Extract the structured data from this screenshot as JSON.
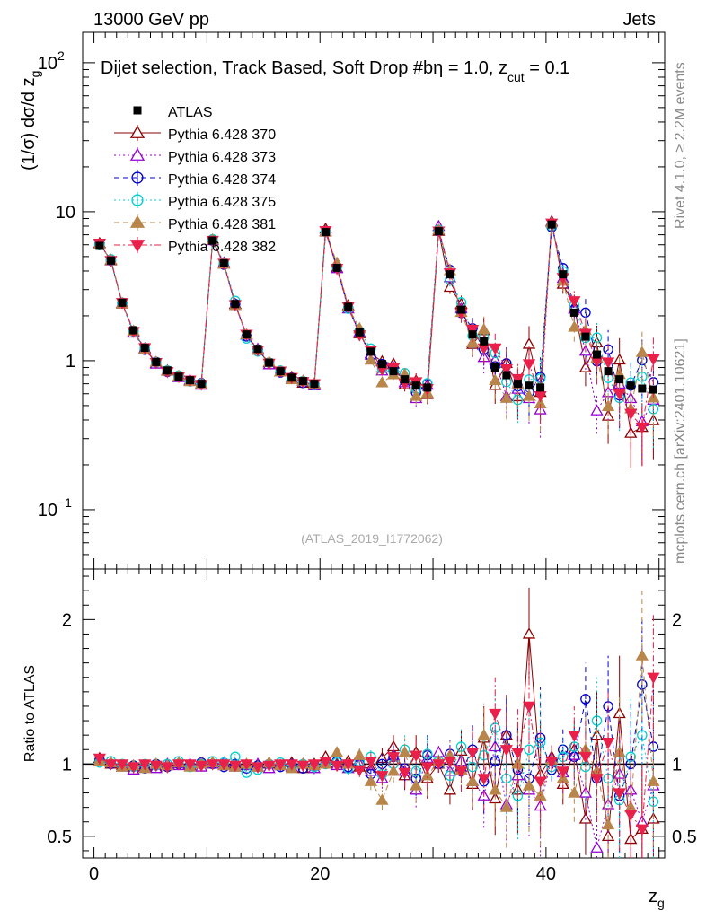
{
  "header": {
    "left": "13000 GeV pp",
    "right": "Jets",
    "side_top": "Rivet 4.1.0, ≥ 2.2M events",
    "side_bottom": "mcplots.cern.ch [arXiv:2401.10621]"
  },
  "chart_data": [
    {
      "type": "scatter",
      "panel": "main",
      "title": "Dijet selection, Track Based, Soft Drop #bη = 1.0, z",
      "title_sub": "cut",
      "title_tail": " = 0.1",
      "ylabel": "(1/σ) dσ/d z",
      "ylabel_sub": "g",
      "yscale": "log",
      "ylim": [
        0.04,
        160
      ],
      "xlim": [
        -1,
        50.5
      ],
      "yticks": [
        0.1,
        1,
        10,
        100
      ],
      "ytick_labels": {
        "b1": "10",
        "e1": "−1",
        "l2": "1",
        "l3": "10",
        "b4": "10",
        "e4": "2"
      },
      "analysis_label": "(ATLAS_2019_I1772062)",
      "legend": [
        "ATLAS",
        "Pythia 6.428 370",
        "Pythia 6.428 373",
        "Pythia 6.428 374",
        "Pythia 6.428 375",
        "Pythia 6.428 381",
        "Pythia 6.428 382"
      ],
      "x": [
        0.5,
        1.5,
        2.5,
        3.5,
        4.5,
        5.5,
        6.5,
        7.5,
        8.5,
        9.5,
        10.5,
        11.5,
        12.5,
        13.5,
        14.5,
        15.5,
        16.5,
        17.5,
        18.5,
        19.5,
        20.5,
        21.5,
        22.5,
        23.5,
        24.5,
        25.5,
        26.5,
        27.5,
        28.5,
        29.5,
        30.5,
        31.5,
        32.5,
        33.5,
        34.5,
        35.5,
        36.5,
        37.5,
        38.5,
        39.5,
        40.5,
        41.5,
        42.5,
        43.5,
        44.5,
        45.5,
        46.5,
        47.5,
        48.5,
        49.5
      ],
      "atlas": [
        5.9,
        4.7,
        2.45,
        1.6,
        1.22,
        0.98,
        0.86,
        0.78,
        0.74,
        0.7,
        6.4,
        4.5,
        2.4,
        1.5,
        1.2,
        0.97,
        0.85,
        0.77,
        0.73,
        0.7,
        7.3,
        4.2,
        2.3,
        1.55,
        1.15,
        0.95,
        0.85,
        0.75,
        0.68,
        0.66,
        7.4,
        3.8,
        2.2,
        1.5,
        1.35,
        0.9,
        0.8,
        0.7,
        0.68,
        0.66,
        8.2,
        3.8,
        2.1,
        1.45,
        1.1,
        0.85,
        0.75,
        0.68,
        0.65,
        0.64
      ],
      "atlas_err": 0.06
    },
    {
      "type": "scatter",
      "panel": "ratio",
      "ylabel": "Ratio to ATLAS",
      "xlabel": "z",
      "xlabel_sub": "g",
      "ylim": [
        0.35,
        2.35
      ],
      "xticks": [
        0,
        20,
        40
      ],
      "ytick_labels": [
        "0.5",
        "1",
        "2"
      ],
      "yticks": [
        0.5,
        1,
        2
      ],
      "series": [
        {
          "name": "Pythia 6.428 370",
          "color": "#8B0000",
          "marker": "triangle-open",
          "dash": "solid",
          "values": [
            1.04,
            1.0,
            0.99,
            0.98,
            0.99,
            0.98,
            0.99,
            1.0,
            0.99,
            1.0,
            1.01,
            0.99,
            1.0,
            0.99,
            0.98,
            1.0,
            0.99,
            1.01,
            0.97,
            1.0,
            1.05,
            1.0,
            1.02,
            0.98,
            0.97,
            1.04,
            1.12,
            0.92,
            1.08,
            0.9,
            1.0,
            0.82,
            1.09,
            0.86,
            1.18,
            0.76,
            1.2,
            0.82,
            1.9,
            0.93,
            1.05,
            0.86,
            1.1,
            0.62,
            1.2,
            0.5,
            1.35,
            0.48,
            0.55,
            0.62
          ],
          "errors": [
            0.02,
            0.02,
            0.02,
            0.02,
            0.02,
            0.02,
            0.02,
            0.02,
            0.02,
            0.03,
            0.02,
            0.02,
            0.02,
            0.02,
            0.03,
            0.03,
            0.03,
            0.03,
            0.03,
            0.04,
            0.03,
            0.03,
            0.04,
            0.05,
            0.06,
            0.07,
            0.08,
            0.1,
            0.12,
            0.14,
            0.06,
            0.1,
            0.14,
            0.18,
            0.22,
            0.25,
            0.28,
            0.3,
            0.32,
            0.35,
            0.08,
            0.14,
            0.2,
            0.25,
            0.3,
            0.35,
            0.4,
            0.42,
            0.45,
            0.45
          ]
        },
        {
          "name": "Pythia 6.428 373",
          "color": "#9400D3",
          "marker": "triangle-open",
          "dash": "dot",
          "values": [
            1.02,
            1.01,
            0.98,
            0.96,
            0.98,
            0.97,
            1.0,
            0.99,
            1.0,
            0.98,
            1.0,
            1.01,
            0.98,
            0.99,
            1.0,
            0.97,
            0.99,
            0.98,
            1.0,
            0.97,
            1.01,
            0.99,
            0.97,
            1.0,
            0.95,
            0.9,
            1.06,
            0.95,
            0.82,
            1.04,
            1.08,
            0.95,
            1.02,
            0.88,
            0.78,
            1.12,
            0.72,
            0.92,
            0.82,
            0.71,
            1.04,
            0.94,
            1.06,
            0.8,
            0.42,
            0.72,
            0.93,
            0.82,
            0.6,
            0.85
          ],
          "errors": [
            0.02,
            0.02,
            0.02,
            0.02,
            0.02,
            0.02,
            0.02,
            0.02,
            0.02,
            0.03,
            0.02,
            0.02,
            0.02,
            0.02,
            0.03,
            0.03,
            0.03,
            0.03,
            0.03,
            0.04,
            0.03,
            0.03,
            0.04,
            0.05,
            0.06,
            0.07,
            0.08,
            0.1,
            0.12,
            0.14,
            0.06,
            0.1,
            0.14,
            0.18,
            0.22,
            0.25,
            0.28,
            0.3,
            0.32,
            0.35,
            0.08,
            0.14,
            0.2,
            0.25,
            0.3,
            0.35,
            0.4,
            0.42,
            0.45,
            0.45
          ]
        },
        {
          "name": "Pythia 6.428 374",
          "color": "#0000CD",
          "marker": "circle-open",
          "dash": "dash",
          "values": [
            1.03,
            1.0,
            0.99,
            0.99,
            0.97,
            1.0,
            0.98,
            1.0,
            0.99,
            1.01,
            1.0,
            0.98,
            1.0,
            0.97,
            0.99,
            1.0,
            0.98,
            1.0,
            0.97,
            0.99,
            1.0,
            1.02,
            0.98,
            1.0,
            0.93,
            1.0,
            1.05,
            0.97,
            0.9,
            1.06,
            1.0,
            1.07,
            0.95,
            1.1,
            0.88,
            1.02,
            1.2,
            0.96,
            0.9,
            1.18,
            0.96,
            1.1,
            1.05,
            1.45,
            0.9,
            1.4,
            0.78,
            1.0,
            1.55,
            1.12
          ],
          "errors": [
            0.02,
            0.02,
            0.02,
            0.02,
            0.02,
            0.02,
            0.02,
            0.02,
            0.02,
            0.03,
            0.02,
            0.02,
            0.02,
            0.02,
            0.03,
            0.03,
            0.03,
            0.03,
            0.03,
            0.04,
            0.03,
            0.03,
            0.04,
            0.05,
            0.06,
            0.07,
            0.08,
            0.1,
            0.12,
            0.14,
            0.06,
            0.1,
            0.14,
            0.18,
            0.22,
            0.25,
            0.28,
            0.3,
            0.32,
            0.35,
            0.08,
            0.14,
            0.2,
            0.25,
            0.3,
            0.35,
            0.4,
            0.42,
            0.45,
            0.45
          ]
        },
        {
          "name": "Pythia 6.428 375",
          "color": "#00CED1",
          "marker": "circle-open",
          "dash": "dot",
          "values": [
            1.01,
            1.02,
            1.0,
            0.98,
            1.0,
            0.99,
            1.0,
            1.02,
            0.98,
            1.0,
            1.02,
            1.01,
            1.05,
            0.94,
            0.96,
            1.0,
            1.01,
            0.98,
            1.0,
            0.98,
            1.0,
            1.01,
            0.97,
            1.02,
            1.05,
            0.93,
            1.0,
            1.1,
            0.95,
            1.07,
            1.02,
            0.92,
            1.12,
            0.98,
            1.06,
            1.25,
            0.9,
            0.78,
            1.1,
            1.15,
            0.98,
            1.05,
            1.12,
            0.98,
            1.3,
            0.9,
            0.75,
            1.05,
            1.2,
            0.74
          ],
          "errors": [
            0.02,
            0.02,
            0.02,
            0.02,
            0.02,
            0.02,
            0.02,
            0.02,
            0.02,
            0.03,
            0.02,
            0.02,
            0.02,
            0.02,
            0.03,
            0.03,
            0.03,
            0.03,
            0.03,
            0.04,
            0.03,
            0.03,
            0.04,
            0.05,
            0.06,
            0.07,
            0.08,
            0.1,
            0.12,
            0.14,
            0.06,
            0.1,
            0.14,
            0.18,
            0.22,
            0.25,
            0.28,
            0.3,
            0.32,
            0.35,
            0.08,
            0.14,
            0.2,
            0.25,
            0.3,
            0.35,
            0.4,
            0.42,
            0.45,
            0.45
          ]
        },
        {
          "name": "Pythia 6.428 381",
          "color": "#B8864B",
          "marker": "triangle-filled",
          "dash": "dash",
          "values": [
            1.02,
            1.01,
            0.98,
            0.99,
            0.97,
            1.0,
            0.99,
            1.01,
            0.98,
            1.0,
            1.01,
            0.99,
            0.98,
            1.0,
            0.98,
            1.01,
            0.99,
            0.97,
            1.0,
            0.99,
            1.0,
            1.08,
            1.0,
            1.06,
            0.88,
            0.75,
            0.95,
            1.08,
            0.85,
            0.92,
            1.02,
            1.06,
            0.96,
            0.88,
            1.2,
            0.82,
            0.7,
            1.0,
            0.85,
            0.78,
            1.03,
            0.9,
            0.8,
            1.1,
            0.95,
            0.58,
            1.08,
            0.7,
            1.75,
            0.88
          ],
          "errors": [
            0.02,
            0.02,
            0.02,
            0.02,
            0.02,
            0.02,
            0.02,
            0.02,
            0.02,
            0.03,
            0.02,
            0.02,
            0.02,
            0.02,
            0.03,
            0.03,
            0.03,
            0.03,
            0.03,
            0.04,
            0.03,
            0.03,
            0.04,
            0.05,
            0.06,
            0.07,
            0.08,
            0.1,
            0.12,
            0.14,
            0.06,
            0.1,
            0.14,
            0.18,
            0.22,
            0.25,
            0.28,
            0.3,
            0.32,
            0.35,
            0.08,
            0.14,
            0.2,
            0.25,
            0.3,
            0.35,
            0.4,
            0.42,
            0.45,
            0.45
          ]
        },
        {
          "name": "Pythia 6.428 382",
          "color": "#E8204A",
          "marker": "triangle-down-filled",
          "dash": "dashdot",
          "values": [
            1.04,
            1.0,
            1.0,
            0.98,
            1.0,
            0.99,
            0.98,
            1.0,
            1.0,
            0.99,
            1.0,
            1.0,
            0.99,
            1.0,
            0.98,
            0.99,
            1.0,
            1.0,
            0.99,
            1.0,
            1.02,
            0.99,
            1.0,
            0.96,
            1.02,
            0.92,
            1.05,
            0.94,
            1.06,
            0.98,
            1.0,
            1.02,
            0.95,
            1.08,
            0.9,
            1.35,
            1.1,
            1.08,
            1.4,
            0.88,
            1.02,
            0.95,
            1.2,
            1.05,
            0.9,
            1.15,
            0.8,
            0.65,
            0.55,
            1.6
          ],
          "errors": [
            0.02,
            0.02,
            0.02,
            0.02,
            0.02,
            0.02,
            0.02,
            0.02,
            0.02,
            0.03,
            0.02,
            0.02,
            0.02,
            0.02,
            0.03,
            0.03,
            0.03,
            0.03,
            0.03,
            0.04,
            0.03,
            0.03,
            0.04,
            0.05,
            0.06,
            0.07,
            0.08,
            0.1,
            0.12,
            0.14,
            0.06,
            0.1,
            0.14,
            0.18,
            0.22,
            0.25,
            0.28,
            0.3,
            0.32,
            0.35,
            0.08,
            0.14,
            0.2,
            0.25,
            0.3,
            0.35,
            0.4,
            0.42,
            0.45,
            0.45
          ]
        }
      ]
    }
  ]
}
